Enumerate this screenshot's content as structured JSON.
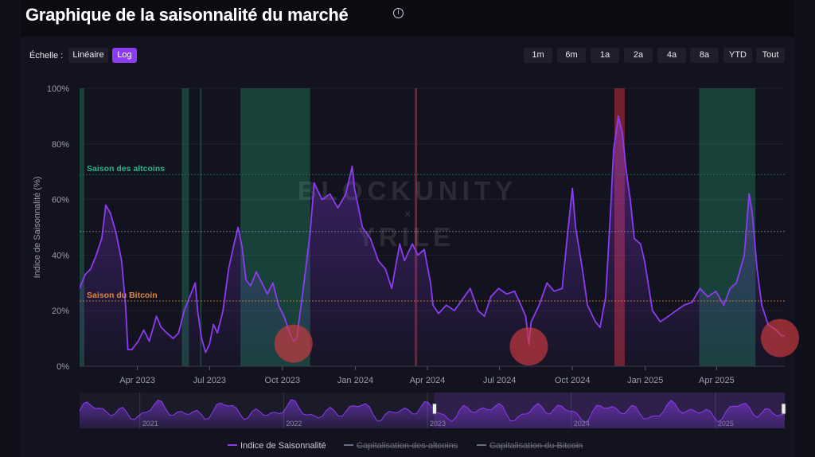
{
  "header": {
    "title": "Graphique de la saisonnalité du marché",
    "info_icon": "info-circle-icon"
  },
  "controls": {
    "scale_label": "Échelle :",
    "scale_options": [
      {
        "label": "Linéaire",
        "active": false
      },
      {
        "label": "Log",
        "active": true
      }
    ],
    "ranges": [
      "1m",
      "6m",
      "1a",
      "2a",
      "4a",
      "8a",
      "YTD",
      "Tout"
    ]
  },
  "colors": {
    "index_line": "#8b3cf0",
    "altcoin_season": "#1f7a5c",
    "bitcoin_season": "#e0873a",
    "bitcoin_band": "#c0303a",
    "low_marker": "#d23a40"
  },
  "watermark": {
    "line1": "BLOCKUNITY",
    "line2": "×",
    "line3": "YRILE"
  },
  "chart_data": {
    "type": "line",
    "ylabel": "Indice de Saisonnalité (%)",
    "ylim": [
      0,
      100
    ],
    "y_ticks": [
      "0%",
      "20%",
      "40%",
      "60%",
      "80%",
      "100%"
    ],
    "x_ticks": [
      "Apr 2023",
      "Jul 2023",
      "Oct 2023",
      "Jan 2024",
      "Apr 2024",
      "Jul 2024",
      "Oct 2024",
      "Jan 2025",
      "Apr 2025"
    ],
    "xlim": [
      "2023-01-18",
      "2025-06-26"
    ],
    "reference_lines": [
      {
        "label": "Saison des altcoins",
        "value": 69
      },
      {
        "label": "",
        "value": 48.5
      },
      {
        "label": "Saison du Bitcoin",
        "value": 23.5
      }
    ],
    "altcoin_season_periods": [
      [
        "2023-01-18",
        "2023-01-24"
      ],
      [
        "2023-05-27",
        "2023-06-05"
      ],
      [
        "2023-06-19",
        "2023-06-20"
      ],
      [
        "2023-08-09",
        "2023-11-05"
      ],
      [
        "2025-03-10",
        "2025-05-20"
      ]
    ],
    "bitcoin_season_periods": [
      [
        "2024-03-16",
        "2024-03-18"
      ],
      [
        "2024-11-23",
        "2024-12-06"
      ]
    ],
    "low_markers": [
      "2023-10-15",
      "2024-08-07",
      "2025-06-26"
    ],
    "series": [
      {
        "name": "Indice de Saisonnalité",
        "points": [
          [
            "2023-01-18",
            28
          ],
          [
            "2023-01-25",
            33
          ],
          [
            "2023-02-01",
            35
          ],
          [
            "2023-02-08",
            40
          ],
          [
            "2023-02-15",
            46
          ],
          [
            "2023-02-20",
            58
          ],
          [
            "2023-02-26",
            55
          ],
          [
            "2023-03-05",
            48
          ],
          [
            "2023-03-12",
            38
          ],
          [
            "2023-03-17",
            22
          ],
          [
            "2023-03-20",
            6
          ],
          [
            "2023-03-25",
            6
          ],
          [
            "2023-04-02",
            9
          ],
          [
            "2023-04-09",
            13
          ],
          [
            "2023-04-16",
            9
          ],
          [
            "2023-04-25",
            18
          ],
          [
            "2023-05-01",
            14
          ],
          [
            "2023-05-08",
            12
          ],
          [
            "2023-05-16",
            10
          ],
          [
            "2023-05-23",
            12
          ],
          [
            "2023-05-30",
            20
          ],
          [
            "2023-06-06",
            25
          ],
          [
            "2023-06-13",
            30
          ],
          [
            "2023-06-16",
            20
          ],
          [
            "2023-06-21",
            10
          ],
          [
            "2023-06-26",
            5
          ],
          [
            "2023-07-01",
            8
          ],
          [
            "2023-07-06",
            15
          ],
          [
            "2023-07-11",
            12
          ],
          [
            "2023-07-18",
            20
          ],
          [
            "2023-07-25",
            35
          ],
          [
            "2023-08-01",
            44
          ],
          [
            "2023-08-06",
            50
          ],
          [
            "2023-08-11",
            43
          ],
          [
            "2023-08-16",
            31
          ],
          [
            "2023-08-22",
            29
          ],
          [
            "2023-08-29",
            34
          ],
          [
            "2023-09-05",
            30
          ],
          [
            "2023-09-12",
            26
          ],
          [
            "2023-09-19",
            30
          ],
          [
            "2023-09-26",
            22
          ],
          [
            "2023-10-03",
            18
          ],
          [
            "2023-10-10",
            12
          ],
          [
            "2023-10-15",
            9
          ],
          [
            "2023-10-19",
            10
          ],
          [
            "2023-10-26",
            25
          ],
          [
            "2023-11-05",
            48
          ],
          [
            "2023-11-10",
            66
          ],
          [
            "2023-11-20",
            60
          ],
          [
            "2023-11-30",
            62
          ],
          [
            "2023-12-10",
            57
          ],
          [
            "2023-12-20",
            62
          ],
          [
            "2023-12-28",
            72
          ],
          [
            "2023-12-31",
            64
          ],
          [
            "2024-01-10",
            50
          ],
          [
            "2024-01-20",
            46
          ],
          [
            "2024-01-30",
            38
          ],
          [
            "2024-02-08",
            35
          ],
          [
            "2024-02-16",
            28
          ],
          [
            "2024-02-26",
            44
          ],
          [
            "2024-03-03",
            38
          ],
          [
            "2024-03-13",
            44
          ],
          [
            "2024-03-20",
            40
          ],
          [
            "2024-03-28",
            42
          ],
          [
            "2024-04-05",
            30
          ],
          [
            "2024-04-08",
            22
          ],
          [
            "2024-04-15",
            19
          ],
          [
            "2024-04-25",
            22
          ],
          [
            "2024-05-05",
            20
          ],
          [
            "2024-05-15",
            24
          ],
          [
            "2024-05-25",
            28
          ],
          [
            "2024-06-04",
            20
          ],
          [
            "2024-06-12",
            18
          ],
          [
            "2024-06-20",
            25
          ],
          [
            "2024-06-30",
            28
          ],
          [
            "2024-07-10",
            26
          ],
          [
            "2024-07-20",
            27
          ],
          [
            "2024-07-28",
            22
          ],
          [
            "2024-08-03",
            18
          ],
          [
            "2024-08-07",
            8
          ],
          [
            "2024-08-10",
            16
          ],
          [
            "2024-08-20",
            22
          ],
          [
            "2024-08-30",
            30
          ],
          [
            "2024-09-08",
            27
          ],
          [
            "2024-09-18",
            28
          ],
          [
            "2024-09-25",
            48
          ],
          [
            "2024-10-01",
            64
          ],
          [
            "2024-10-05",
            50
          ],
          [
            "2024-10-13",
            36
          ],
          [
            "2024-10-20",
            22
          ],
          [
            "2024-10-30",
            16
          ],
          [
            "2024-11-05",
            14
          ],
          [
            "2024-11-12",
            25
          ],
          [
            "2024-11-18",
            55
          ],
          [
            "2024-11-22",
            78
          ],
          [
            "2024-11-28",
            90
          ],
          [
            "2024-12-03",
            84
          ],
          [
            "2024-12-08",
            70
          ],
          [
            "2024-12-13",
            60
          ],
          [
            "2024-12-18",
            46
          ],
          [
            "2024-12-26",
            44
          ],
          [
            "2024-12-31",
            38
          ],
          [
            "2025-01-10",
            20
          ],
          [
            "2025-01-20",
            16
          ],
          [
            "2025-01-30",
            18
          ],
          [
            "2025-02-09",
            20
          ],
          [
            "2025-02-19",
            22
          ],
          [
            "2025-03-01",
            23
          ],
          [
            "2025-03-11",
            28
          ],
          [
            "2025-03-21",
            25
          ],
          [
            "2025-03-31",
            27
          ],
          [
            "2025-04-10",
            22
          ],
          [
            "2025-04-18",
            28
          ],
          [
            "2025-04-26",
            30
          ],
          [
            "2025-05-06",
            40
          ],
          [
            "2025-05-12",
            62
          ],
          [
            "2025-05-16",
            55
          ],
          [
            "2025-05-22",
            35
          ],
          [
            "2025-05-28",
            22
          ],
          [
            "2025-06-05",
            15
          ],
          [
            "2025-06-15",
            13
          ],
          [
            "2025-06-22",
            11
          ],
          [
            "2025-06-26",
            11
          ]
        ]
      },
      {
        "name": "Capitalisation des altcoins",
        "points": []
      },
      {
        "name": "Capitalisation du Bitcoin",
        "points": []
      }
    ],
    "navigator": {
      "x_ticks": [
        "2021",
        "2022",
        "2023",
        "2024",
        "2025"
      ],
      "selected_range": [
        "2023-01-18",
        "2025-06-26"
      ]
    }
  }
}
